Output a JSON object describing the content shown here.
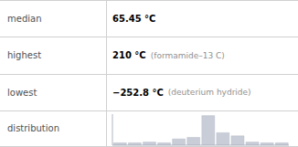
{
  "chart_data": {
    "type": "bar",
    "categories": [
      null,
      null,
      null,
      null,
      null,
      null,
      null,
      null,
      null,
      null,
      null,
      null
    ],
    "values": [
      0.3,
      0.3,
      0.4,
      0.3,
      0.8,
      1.0,
      3.8,
      1.6,
      1.2,
      0.4,
      0.3,
      0.3
    ],
    "color": "#c8cdd8",
    "ylim": [
      0,
      3.99
    ],
    "tick_labels": false,
    "grid": false,
    "annotations": [
      [
        "median",
        "65.45 °C"
      ],
      [
        "highest",
        "210 °C",
        "(formamide–13 C)"
      ],
      [
        "lowest",
        "−252.8 °C",
        "(deuterium hydride)"
      ],
      [
        "distribution"
      ]
    ]
  }
}
